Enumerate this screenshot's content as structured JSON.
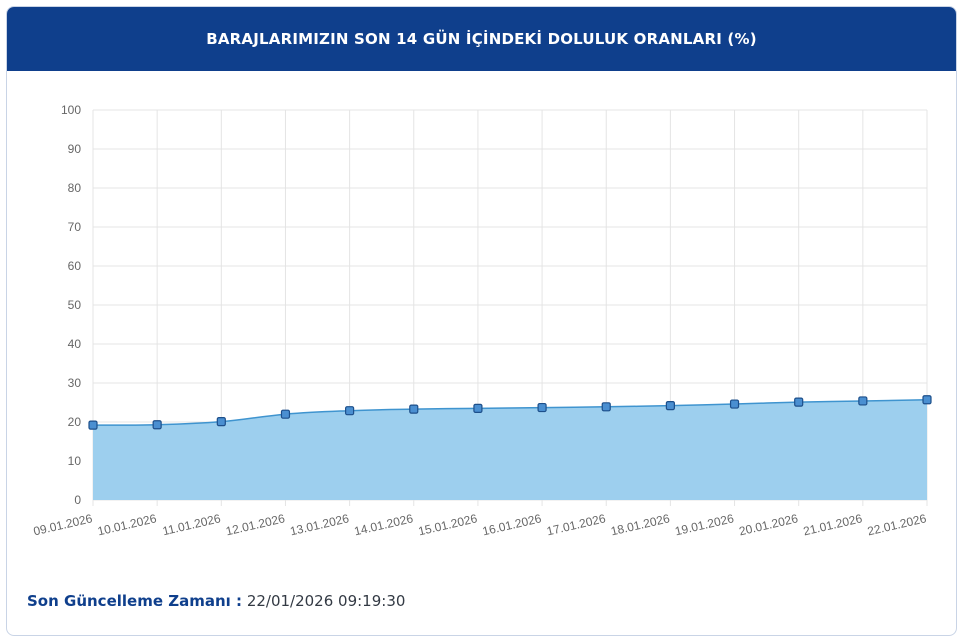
{
  "header": {
    "title": "BARAJLARIMIZIN SON 14 GÜN İÇİNDEKİ DOLULUK ORANLARI (%)"
  },
  "footer": {
    "label": "Son Güncelleme Zamanı :",
    "value": "22/01/2026 09:19:30"
  },
  "colors": {
    "header_bg": "#0f3f8c",
    "area_fill": "#9dcfee",
    "line": "#3f94cf",
    "marker_fill": "#4a8fd1",
    "marker_stroke": "#1d4f8a"
  },
  "chart_data": {
    "type": "area",
    "x": [
      "09.01.2026",
      "10.01.2026",
      "11.01.2026",
      "12.01.2026",
      "13.01.2026",
      "14.01.2026",
      "15.01.2026",
      "16.01.2026",
      "17.01.2026",
      "18.01.2026",
      "19.01.2026",
      "20.01.2026",
      "21.01.2026",
      "22.01.2026"
    ],
    "series": [
      {
        "values": [
          19.2,
          19.3,
          20.1,
          22.0,
          22.9,
          23.3,
          23.5,
          23.7,
          23.9,
          24.2,
          24.6,
          25.1,
          25.4,
          25.7
        ]
      }
    ],
    "ylim": [
      0,
      100
    ],
    "yticks": [
      0,
      10,
      20,
      30,
      40,
      50,
      60,
      70,
      80,
      90,
      100
    ],
    "grid": true
  }
}
